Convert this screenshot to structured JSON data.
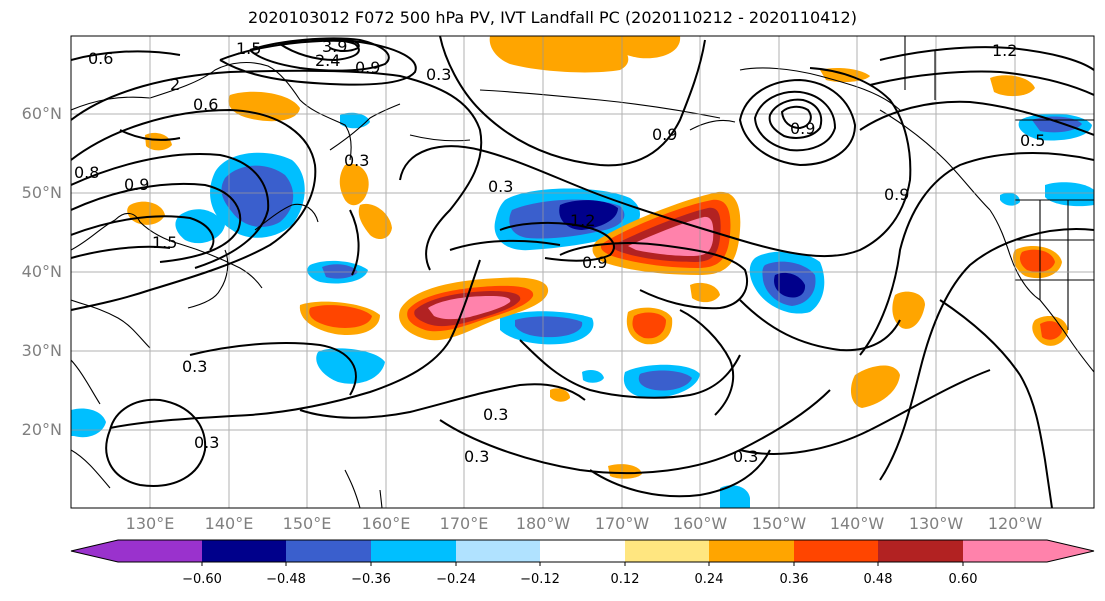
{
  "title": "2020103012 F072 500 hPa PV, IVT Landfall PC (2020110212 - 2020110412)",
  "lat_labels": [
    "60°N",
    "50°N",
    "40°N",
    "30°N",
    "20°N"
  ],
  "lon_labels": [
    "130°E",
    "140°E",
    "150°E",
    "160°E",
    "170°E",
    "180°W",
    "170°W",
    "160°W",
    "150°W",
    "140°W",
    "130°W",
    "120°W"
  ],
  "contour_labels": [
    "0.6",
    "1.5",
    "3.9",
    "2.4",
    "0.9",
    "0.3",
    "0.6",
    "0.3",
    "0.3",
    "0.9",
    "1.2",
    "0.9",
    "0.9",
    "1.2",
    "0.9",
    "1.5",
    "0.9",
    "0.3",
    "0.3",
    "0.3",
    "0.3",
    "0.3",
    "2",
    "0.5",
    "0.8"
  ],
  "colorbar": {
    "ticks": [
      "−0.60",
      "−0.48",
      "−0.36",
      "−0.24",
      "−0.12",
      "0.12",
      "0.24",
      "0.36",
      "0.48",
      "0.60"
    ],
    "colors": [
      "#9a32cd",
      "#00008b",
      "#3a5fcd",
      "#00bfff",
      "#b0e2ff",
      "#ffffff",
      "#ffe680",
      "#ffa500",
      "#ff4500",
      "#b22222",
      "#ff82ab"
    ]
  },
  "palette": {
    "neg_deep": "#00008b",
    "neg_mid": "#3a5fcd",
    "neg_light": "#00bfff",
    "neg_pale": "#b0e2ff",
    "pos_pale": "#ffe680",
    "pos_light": "#ffa500",
    "pos_mid": "#ff4500",
    "pos_deep": "#b22222",
    "pos_max": "#ff82ab"
  }
}
